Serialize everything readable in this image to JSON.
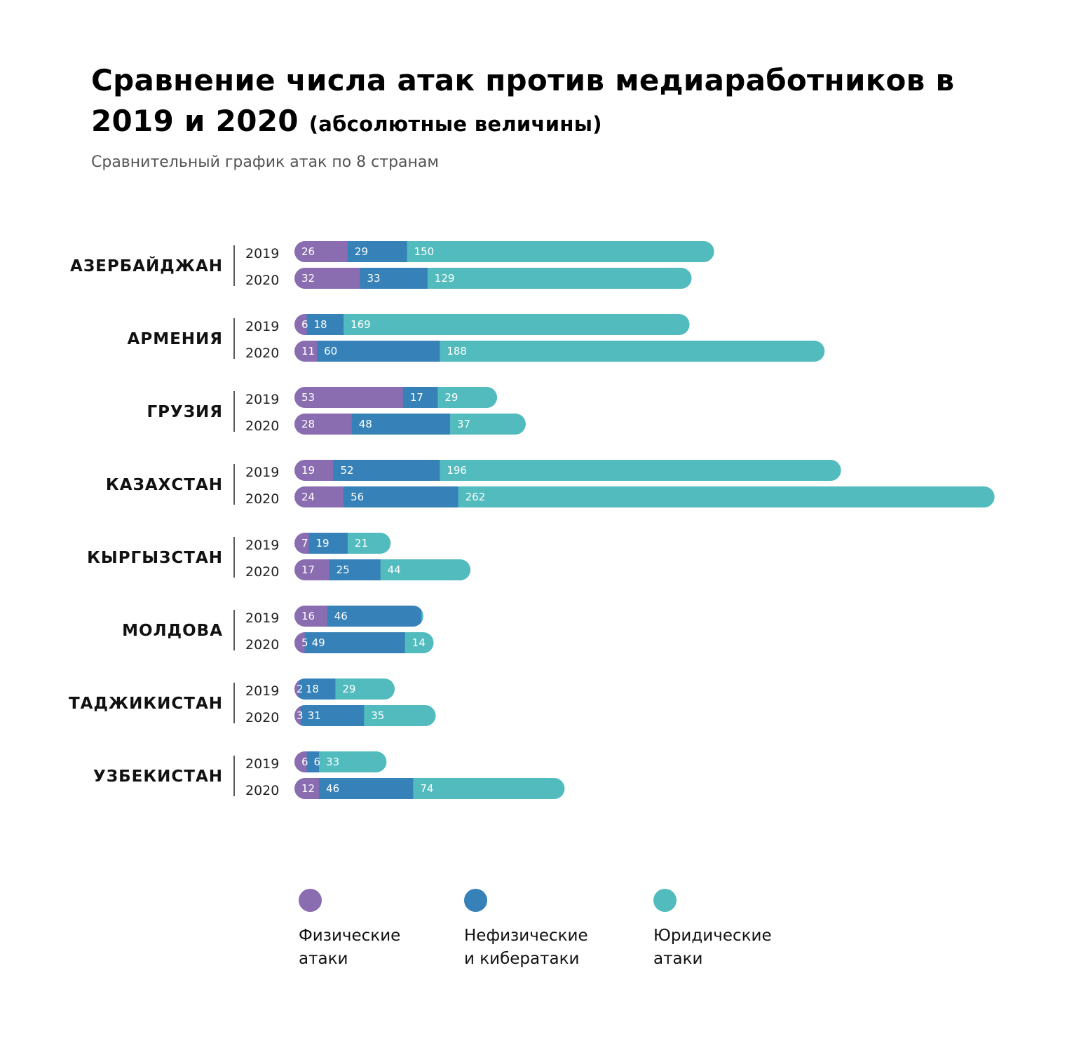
{
  "title": {
    "main": "Сравнение числа атак против медиаработников в 2019 и 2020",
    "suffix": "(абсолютные величины)"
  },
  "subtitle": "Сравнительный график атак по 8 странам",
  "colors": {
    "physical": "#8a6cb1",
    "nonphysical": "#3581b8",
    "legal": "#52bbbd"
  },
  "chart_data": {
    "type": "bar",
    "orientation": "horizontal",
    "stacked": true,
    "series_names": [
      "Физические атаки",
      "Нефизические и кибератаки",
      "Юридические атаки"
    ],
    "groups": [
      {
        "country": "АЗЕРБАЙДЖАН",
        "rows": [
          {
            "year": "2019",
            "values": [
              26,
              29,
              150
            ]
          },
          {
            "year": "2020",
            "values": [
              32,
              33,
              129
            ]
          }
        ]
      },
      {
        "country": "АРМЕНИЯ",
        "rows": [
          {
            "year": "2019",
            "values": [
              6,
              18,
              169
            ]
          },
          {
            "year": "2020",
            "values": [
              11,
              60,
              188
            ]
          }
        ]
      },
      {
        "country": "ГРУЗИЯ",
        "rows": [
          {
            "year": "2019",
            "values": [
              53,
              17,
              29
            ]
          },
          {
            "year": "2020",
            "values": [
              28,
              48,
              37
            ]
          }
        ]
      },
      {
        "country": "КАЗАХСТАН",
        "rows": [
          {
            "year": "2019",
            "values": [
              19,
              52,
              196
            ]
          },
          {
            "year": "2020",
            "values": [
              24,
              56,
              262
            ]
          }
        ]
      },
      {
        "country": "КЫРГЫЗСТАН",
        "rows": [
          {
            "year": "2019",
            "values": [
              7,
              19,
              21
            ]
          },
          {
            "year": "2020",
            "values": [
              17,
              25,
              44
            ]
          }
        ]
      },
      {
        "country": "МОЛДОВА",
        "rows": [
          {
            "year": "2019",
            "values": [
              16,
              46,
              1
            ]
          },
          {
            "year": "2020",
            "values": [
              5,
              49,
              14
            ]
          }
        ]
      },
      {
        "country": "ТАДЖИКИСТАН",
        "rows": [
          {
            "year": "2019",
            "values": [
              2,
              18,
              29
            ]
          },
          {
            "year": "2020",
            "values": [
              3,
              31,
              35
            ]
          }
        ]
      },
      {
        "country": "УЗБЕКИСТАН",
        "rows": [
          {
            "year": "2019",
            "values": [
              6,
              6,
              33
            ]
          },
          {
            "year": "2020",
            "values": [
              12,
              46,
              74
            ]
          }
        ]
      }
    ]
  },
  "legend": [
    {
      "key": "physical",
      "label": "Физические\nатаки"
    },
    {
      "key": "nonphysical",
      "label": "Нефизические\nи кибератаки"
    },
    {
      "key": "legal",
      "label": "Юридические\nатаки"
    }
  ]
}
